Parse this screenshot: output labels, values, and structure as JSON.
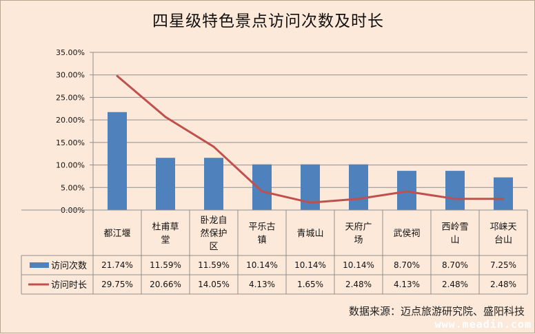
{
  "chart_data": {
    "type": "bar",
    "title": "四星级特色景点访问次数及时长",
    "categories": [
      "都江堰",
      "杜甫草堂",
      "卧龙自然保护区",
      "平乐古镇",
      "青城山",
      "天府广场",
      "武侯祠",
      "西岭雪山",
      "邛崃天台山"
    ],
    "category_lines": [
      [
        "都江堰"
      ],
      [
        "杜甫草",
        "堂"
      ],
      [
        "卧龙自",
        "然保护",
        "区"
      ],
      [
        "平乐古",
        "镇"
      ],
      [
        "青城山"
      ],
      [
        "天府广",
        "场"
      ],
      [
        "武侯祠"
      ],
      [
        "西岭雪",
        "山"
      ],
      [
        "邛崃天",
        "台山"
      ]
    ],
    "series": [
      {
        "name": "访问次数",
        "type": "bar",
        "color": "#4f81bd",
        "values": [
          21.74,
          11.59,
          11.59,
          10.14,
          10.14,
          10.14,
          8.7,
          8.7,
          7.25
        ],
        "labels": [
          "21.74%",
          "11.59%",
          "11.59%",
          "10.14%",
          "10.14%",
          "10.14%",
          "8.70%",
          "8.70%",
          "7.25%"
        ]
      },
      {
        "name": "访问时长",
        "type": "line",
        "color": "#c0504d",
        "values": [
          29.75,
          20.66,
          14.05,
          4.13,
          1.65,
          2.48,
          4.13,
          2.48,
          2.48
        ],
        "labels": [
          "29.75%",
          "20.66%",
          "14.05%",
          "4.13%",
          "1.65%",
          "2.48%",
          "4.13%",
          "2.48%",
          "2.48%"
        ]
      }
    ],
    "ylim": [
      0,
      35
    ],
    "yticks": [
      0,
      5,
      10,
      15,
      20,
      25,
      30,
      35
    ],
    "ytick_labels": [
      "0.00%",
      "5.00%",
      "10.00%",
      "15.00%",
      "20.00%",
      "25.00%",
      "30.00%",
      "35.00%"
    ],
    "grid": true,
    "legend": "data-table"
  },
  "source_note": "数据来源：迈点旅游研究院、盛阳科技",
  "watermark": "www.meadin.com"
}
